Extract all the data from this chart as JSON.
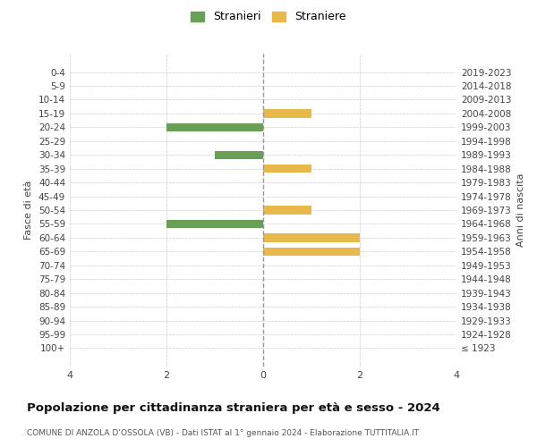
{
  "age_groups": [
    "100+",
    "95-99",
    "90-94",
    "85-89",
    "80-84",
    "75-79",
    "70-74",
    "65-69",
    "60-64",
    "55-59",
    "50-54",
    "45-49",
    "40-44",
    "35-39",
    "30-34",
    "25-29",
    "20-24",
    "15-19",
    "10-14",
    "5-9",
    "0-4"
  ],
  "birth_years": [
    "≤ 1923",
    "1924-1928",
    "1929-1933",
    "1934-1938",
    "1939-1943",
    "1944-1948",
    "1949-1953",
    "1954-1958",
    "1959-1963",
    "1964-1968",
    "1969-1973",
    "1974-1978",
    "1979-1983",
    "1984-1988",
    "1989-1993",
    "1994-1998",
    "1999-2003",
    "2004-2008",
    "2009-2013",
    "2014-2018",
    "2019-2023"
  ],
  "males": [
    0,
    0,
    0,
    0,
    0,
    0,
    0,
    0,
    0,
    2,
    0,
    0,
    0,
    0,
    1,
    0,
    2,
    0,
    0,
    0,
    0
  ],
  "females": [
    0,
    0,
    0,
    0,
    0,
    0,
    0,
    2,
    2,
    0,
    1,
    0,
    0,
    1,
    0,
    0,
    0,
    1,
    0,
    0,
    0
  ],
  "male_color": "#6a9f58",
  "female_color": "#e8b84b",
  "title_main": "Popolazione per cittadinanza straniera per età e sesso - 2024",
  "title_sub": "COMUNE DI ANZOLA D’OSSOLA (VB) - Dati ISTAT al 1° gennaio 2024 - Elaborazione TUTTITALIA.IT",
  "ylabel_left": "Fasce di età",
  "ylabel_right": "Anni di nascita",
  "legend_male": "Stranieri",
  "legend_female": "Straniere",
  "xlim": 4,
  "background_color": "#ffffff",
  "grid_color": "#cccccc"
}
